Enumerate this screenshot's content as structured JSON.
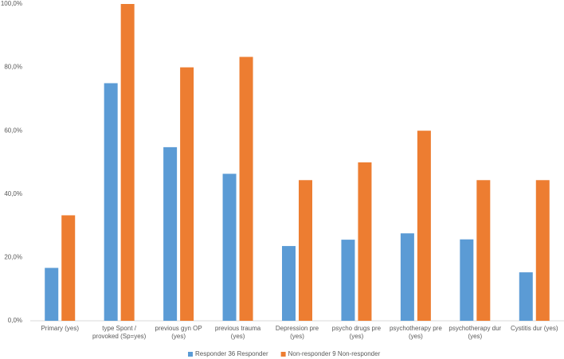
{
  "chart_data": {
    "type": "bar",
    "categories": [
      "Primary (yes)",
      "type Spont / provoked (Sp=yes)",
      "previous gyn OP (yes)",
      "previous trauma (yes)",
      "Depression pre (yes)",
      "psycho drugs pre (yes)",
      "psychotherapy pre (yes)",
      "psychotherapy dur (yes)",
      "Cystitis dur (yes)"
    ],
    "series": [
      {
        "name": "Responder 36 Responder",
        "color": "#5b9bd5",
        "values": [
          16.7,
          75.0,
          54.8,
          46.4,
          23.6,
          25.6,
          27.6,
          25.7,
          15.3
        ]
      },
      {
        "name": "Non-responder 9 Non-responder",
        "color": "#ed7d31",
        "values": [
          33.3,
          100.0,
          80.0,
          83.3,
          44.4,
          50.0,
          60.0,
          44.4,
          44.4
        ]
      }
    ],
    "ylim": [
      0,
      100
    ],
    "yticks": [
      {
        "value": 0,
        "label": "0,0%"
      },
      {
        "value": 20,
        "label": "20,0%"
      },
      {
        "value": 40,
        "label": "40,0%"
      },
      {
        "value": 60,
        "label": "60,0%"
      },
      {
        "value": 80,
        "label": "80,0%"
      },
      {
        "value": 100,
        "label": "100,0%"
      }
    ],
    "grid": false,
    "legend": "bottom"
  }
}
